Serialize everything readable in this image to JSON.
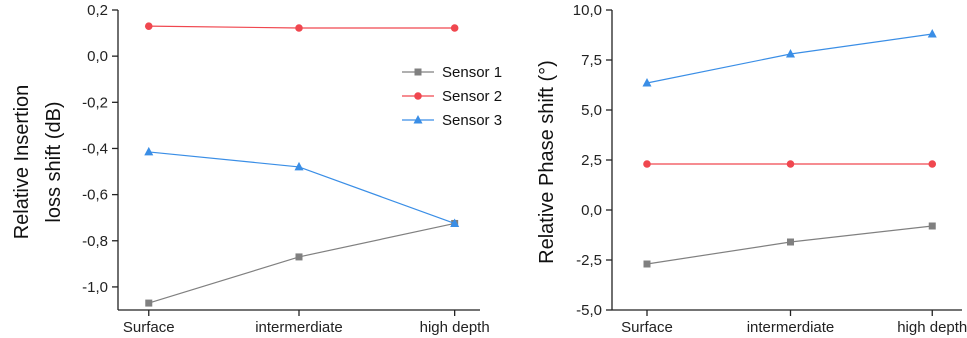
{
  "chart_data": [
    {
      "type": "line",
      "title": "",
      "xlabel": "",
      "ylabel_lines": [
        "Relative Insertion",
        "loss shift (dB)"
      ],
      "categories": [
        "Surface",
        "intermerdiate",
        "high depth"
      ],
      "ylim": [
        -1.1,
        0.2
      ],
      "yticks": [
        0.2,
        0.0,
        -0.2,
        -0.4,
        -0.6,
        -0.8,
        -1.0
      ],
      "ytick_labels": [
        "0,2",
        "0,0",
        "-0,2",
        "-0,4",
        "-0,6",
        "-0,8",
        "-1,0"
      ],
      "legend": {
        "placement": "top-right"
      },
      "series": [
        {
          "name": "Sensor 1",
          "color": "#808080",
          "marker": "square",
          "values": [
            -1.07,
            -0.87,
            -0.725
          ]
        },
        {
          "name": "Sensor 2",
          "color": "#f0474f",
          "marker": "circle",
          "values": [
            0.13,
            0.122,
            0.122
          ]
        },
        {
          "name": "Sensor 3",
          "color": "#3a8ee6",
          "marker": "triangle",
          "values": [
            -0.415,
            -0.48,
            -0.725
          ]
        }
      ]
    },
    {
      "type": "line",
      "title": "",
      "xlabel": "",
      "ylabel_lines": [
        "Relative Phase shift (°)"
      ],
      "categories": [
        "Surface",
        "intermerdiate",
        "high depth"
      ],
      "ylim": [
        -5.0,
        10.0
      ],
      "yticks": [
        10.0,
        7.5,
        5.0,
        2.5,
        0.0,
        -2.5,
        -5.0
      ],
      "ytick_labels": [
        "10,0",
        "7,5",
        "5,0",
        "2,5",
        "0,0",
        "-2,5",
        "-5,0"
      ],
      "series": [
        {
          "name": "Sensor 1",
          "color": "#808080",
          "marker": "square",
          "values": [
            -2.7,
            -1.6,
            -0.8
          ]
        },
        {
          "name": "Sensor 2",
          "color": "#f0474f",
          "marker": "circle",
          "values": [
            2.3,
            2.3,
            2.3
          ]
        },
        {
          "name": "Sensor 3",
          "color": "#3a8ee6",
          "marker": "triangle",
          "values": [
            6.35,
            7.8,
            8.8
          ]
        }
      ]
    }
  ]
}
